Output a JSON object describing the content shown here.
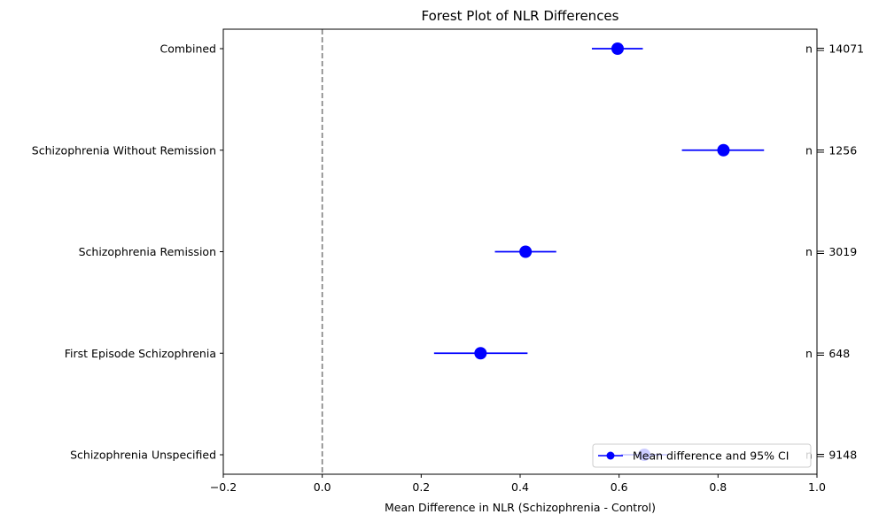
{
  "chart_data": {
    "type": "scatter",
    "title": "Forest Plot of NLR Differences",
    "xlabel": "Mean Difference in NLR (Schizophrenia - Control)",
    "ylabel": "",
    "xlim": [
      -0.2,
      1.0
    ],
    "xticks": [
      "-0.2",
      "0.0",
      "0.2",
      "0.4",
      "0.6",
      "0.8",
      "1.0"
    ],
    "xtick_values": [
      -0.2,
      0.0,
      0.2,
      0.4,
      0.6,
      0.8,
      1.0
    ],
    "reference_line_x": 0.0,
    "grid": false,
    "legend": {
      "label": "Mean difference and 95% CI",
      "placement": "lower-right"
    },
    "colors": {
      "series": "#0000ff",
      "reference_line": "#808080"
    },
    "series": [
      {
        "name": "Mean difference and 95% CI",
        "points": [
          {
            "category": "Combined",
            "mean": 0.597,
            "ci_low": 0.545,
            "ci_high": 0.648,
            "n_label": "n = 14071"
          },
          {
            "category": "Schizophrenia Without Remission",
            "mean": 0.811,
            "ci_low": 0.727,
            "ci_high": 0.893,
            "n_label": "n = 1256"
          },
          {
            "category": "Schizophrenia Remission",
            "mean": 0.411,
            "ci_low": 0.349,
            "ci_high": 0.473,
            "n_label": "n = 3019"
          },
          {
            "category": "First Episode Schizophrenia",
            "mean": 0.32,
            "ci_low": 0.226,
            "ci_high": 0.415,
            "n_label": "n = 648"
          },
          {
            "category": "Schizophrenia Unspecified",
            "mean": 0.651,
            "ci_low": 0.604,
            "ci_high": 0.698,
            "n_label": "n = 9148"
          }
        ]
      }
    ]
  }
}
